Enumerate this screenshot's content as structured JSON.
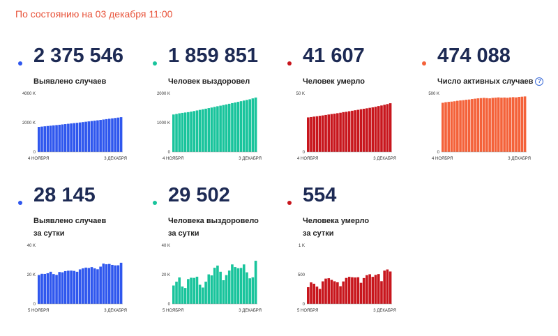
{
  "header": {
    "date_text": "По состоянию на 03 декабря 11:00"
  },
  "cards": [
    {
      "value": "2 375 546",
      "label1": "Выявлено случаев",
      "label2": "",
      "color": "#2f57ee",
      "chart_data": {
        "type": "bar",
        "x_start": "4 НОЯБРЯ",
        "x_end": "3 ДЕКАБРЯ",
        "yticks": [
          "4000 K",
          "2000 K",
          "0"
        ],
        "ylim": [
          0,
          4000000
        ],
        "values": [
          1711730,
          1733440,
          1753840,
          1774330,
          1795150,
          1817110,
          1836960,
          1858570,
          1880550,
          1902160,
          1925830,
          1948600,
          1971010,
          1991880,
          2015610,
          2039930,
          2064750,
          2089330,
          2114500,
          2138810,
          2162200,
          2187990,
          2215530,
          2242630,
          2269940,
          2295650,
          2322060,
          2347400,
          2375546
        ]
      }
    },
    {
      "value": "1 859 851",
      "label1": "Человек выздоровел",
      "label2": "",
      "color": "#19c49c",
      "chart_data": {
        "type": "bar",
        "x_start": "4 НОЯБРЯ",
        "x_end": "3 ДЕКАБРЯ",
        "yticks": [
          "2000 K",
          "1000 K",
          "0"
        ],
        "ylim": [
          0,
          2000000
        ],
        "values": [
          1280000,
          1298000,
          1320000,
          1335000,
          1348000,
          1360000,
          1378000,
          1398000,
          1418000,
          1438000,
          1458000,
          1478000,
          1498000,
          1518000,
          1540000,
          1562000,
          1582000,
          1602000,
          1624000,
          1646000,
          1668000,
          1690000,
          1712000,
          1734000,
          1756000,
          1778000,
          1800000,
          1830000,
          1859851
        ]
      }
    },
    {
      "value": "41 607",
      "label1": "Человек умерло",
      "label2": "",
      "color": "#c8161d",
      "chart_data": {
        "type": "bar",
        "x_start": "4 НОЯБРЯ",
        "x_end": "3 ДЕКАБРЯ",
        "yticks": [
          "50 K",
          "0"
        ],
        "ylim": [
          0,
          50000
        ],
        "values": [
          29500,
          29800,
          30200,
          30500,
          30900,
          31200,
          31600,
          32000,
          32400,
          32700,
          33100,
          33500,
          34000,
          34300,
          34800,
          35200,
          35600,
          36000,
          36500,
          36900,
          37300,
          37700,
          38100,
          38600,
          39200,
          39700,
          40300,
          40900,
          41607
        ]
      }
    },
    {
      "value": "474 088",
      "label1": "Число активных случаев",
      "label2": "",
      "color": "#f4623a",
      "help_icon": "?",
      "chart_data": {
        "type": "bar",
        "x_start": "4 НОЯБРЯ",
        "x_end": "3 ДЕКАБРЯ",
        "yticks": [
          "500 K",
          "0"
        ],
        "ylim": [
          0,
          500000
        ],
        "values": [
          420000,
          425000,
          428000,
          430000,
          433000,
          437000,
          440000,
          442000,
          446000,
          448000,
          452000,
          455000,
          458000,
          460000,
          462000,
          460000,
          458000,
          462000,
          464000,
          466000,
          464000,
          465000,
          463000,
          466000,
          468000,
          466000,
          470000,
          472000,
          474088
        ]
      }
    },
    {
      "value": "28 145",
      "label1": "Выявлено случаев",
      "label2": "за сутки",
      "color": "#2f57ee",
      "chart_data": {
        "type": "bar",
        "x_start": "5 НОЯБРЯ",
        "x_end": "3 ДЕКАБРЯ",
        "yticks": [
          "40 K",
          "20 K",
          "0"
        ],
        "ylim": [
          0,
          40000
        ],
        "values": [
          19768,
          20582,
          20498,
          20977,
          21983,
          20396,
          19851,
          21798,
          21608,
          22410,
          22702,
          22778,
          22572,
          21983,
          23610,
          24318,
          24822,
          24581,
          25173,
          24326,
          23675,
          25487,
          27543,
          27100,
          27308,
          26683,
          26338,
          26402,
          28145
        ]
      }
    },
    {
      "value": "29 502",
      "label1": "Человека выздоровело",
      "label2": "за сутки",
      "color": "#19c49c",
      "chart_data": {
        "type": "bar",
        "x_start": "5 НОЯБРЯ",
        "x_end": "3 ДЕКАБРЯ",
        "yticks": [
          "40 K",
          "20 K",
          "0"
        ],
        "ylim": [
          0,
          40000
        ],
        "values": [
          12600,
          15200,
          18100,
          11900,
          10900,
          17000,
          17900,
          17800,
          18600,
          13100,
          11200,
          15200,
          20200,
          19500,
          24700,
          26200,
          22000,
          16200,
          19700,
          22800,
          27000,
          25200,
          24400,
          24600,
          27000,
          21600,
          17500,
          18200,
          29502
        ]
      }
    },
    {
      "value": "554",
      "label1": "Человека умерло",
      "label2": "за сутки",
      "color": "#c8161d",
      "chart_data": {
        "type": "bar",
        "x_start": "5 НОЯБРЯ",
        "x_end": "3 ДЕКАБРЯ",
        "yticks": [
          "1 K",
          "500",
          "0"
        ],
        "ylim": [
          0,
          1000
        ],
        "values": [
          286,
          368,
          345,
          296,
          256,
          386,
          433,
          439,
          411,
          387,
          370,
          303,
          384,
          444,
          463,
          456,
          452,
          456,
          361,
          442,
          491,
          507,
          463,
          496,
          510,
          389,
          569,
          589,
          554
        ]
      }
    }
  ]
}
